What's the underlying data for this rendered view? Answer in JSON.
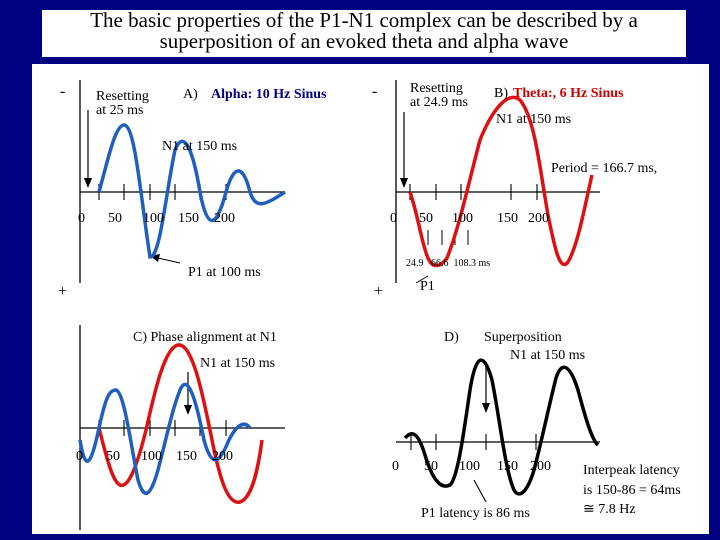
{
  "title": {
    "line1": "The basic properties of the P1-N1 complex can be described by a",
    "line2": "superposition of an evoked theta and alpha wave"
  },
  "panels": {
    "a": {
      "minus": "-",
      "plus": "+",
      "reset_line1": "Resetting",
      "reset_line2": "at 25 ms",
      "heading_prefix": "A)",
      "heading": "Alpha: 10 Hz Sinus",
      "n1": "N1 at 150 ms",
      "p1": "P1 at 100 ms",
      "ticks": [
        "0",
        "50",
        "100",
        "150",
        "200"
      ]
    },
    "b": {
      "minus": "-",
      "plus": "+",
      "reset_line1": "Resetting",
      "reset_line2": "at 24.9 ms",
      "heading_prefix": "B)",
      "heading": "Theta:, 6 Hz Sinus",
      "n1": "N1 at 150 ms",
      "period": "Period = 166.7 ms,",
      "ticks": [
        "0",
        "50",
        "100",
        "150",
        "200"
      ],
      "minor": "24.9   66.6  108.3 ms",
      "p1": "P1"
    },
    "c": {
      "heading": "C) Phase alignment at N1",
      "n1": "N1 at 150 ms",
      "ticks": [
        "0",
        "50",
        "100",
        "150",
        "200"
      ]
    },
    "d": {
      "heading_prefix": "D)",
      "heading_line1": "Superposition",
      "heading_line2": "N1 at 150 ms",
      "ticks": [
        "0",
        "50",
        "100",
        "150",
        "200"
      ],
      "p1_latency": "P1 latency is 86 ms",
      "interpeak_line1": "Interpeak latency",
      "interpeak_line2": "is 150-86 = 64ms",
      "interpeak_line3": "≅ 7.8 Hz"
    }
  },
  "colors": {
    "background": "#000080",
    "alpha": "#1f5fbf",
    "theta": "#dd1111",
    "sum": "#000000",
    "heading_red": "#cc0000",
    "heading_blue": "#000080"
  }
}
